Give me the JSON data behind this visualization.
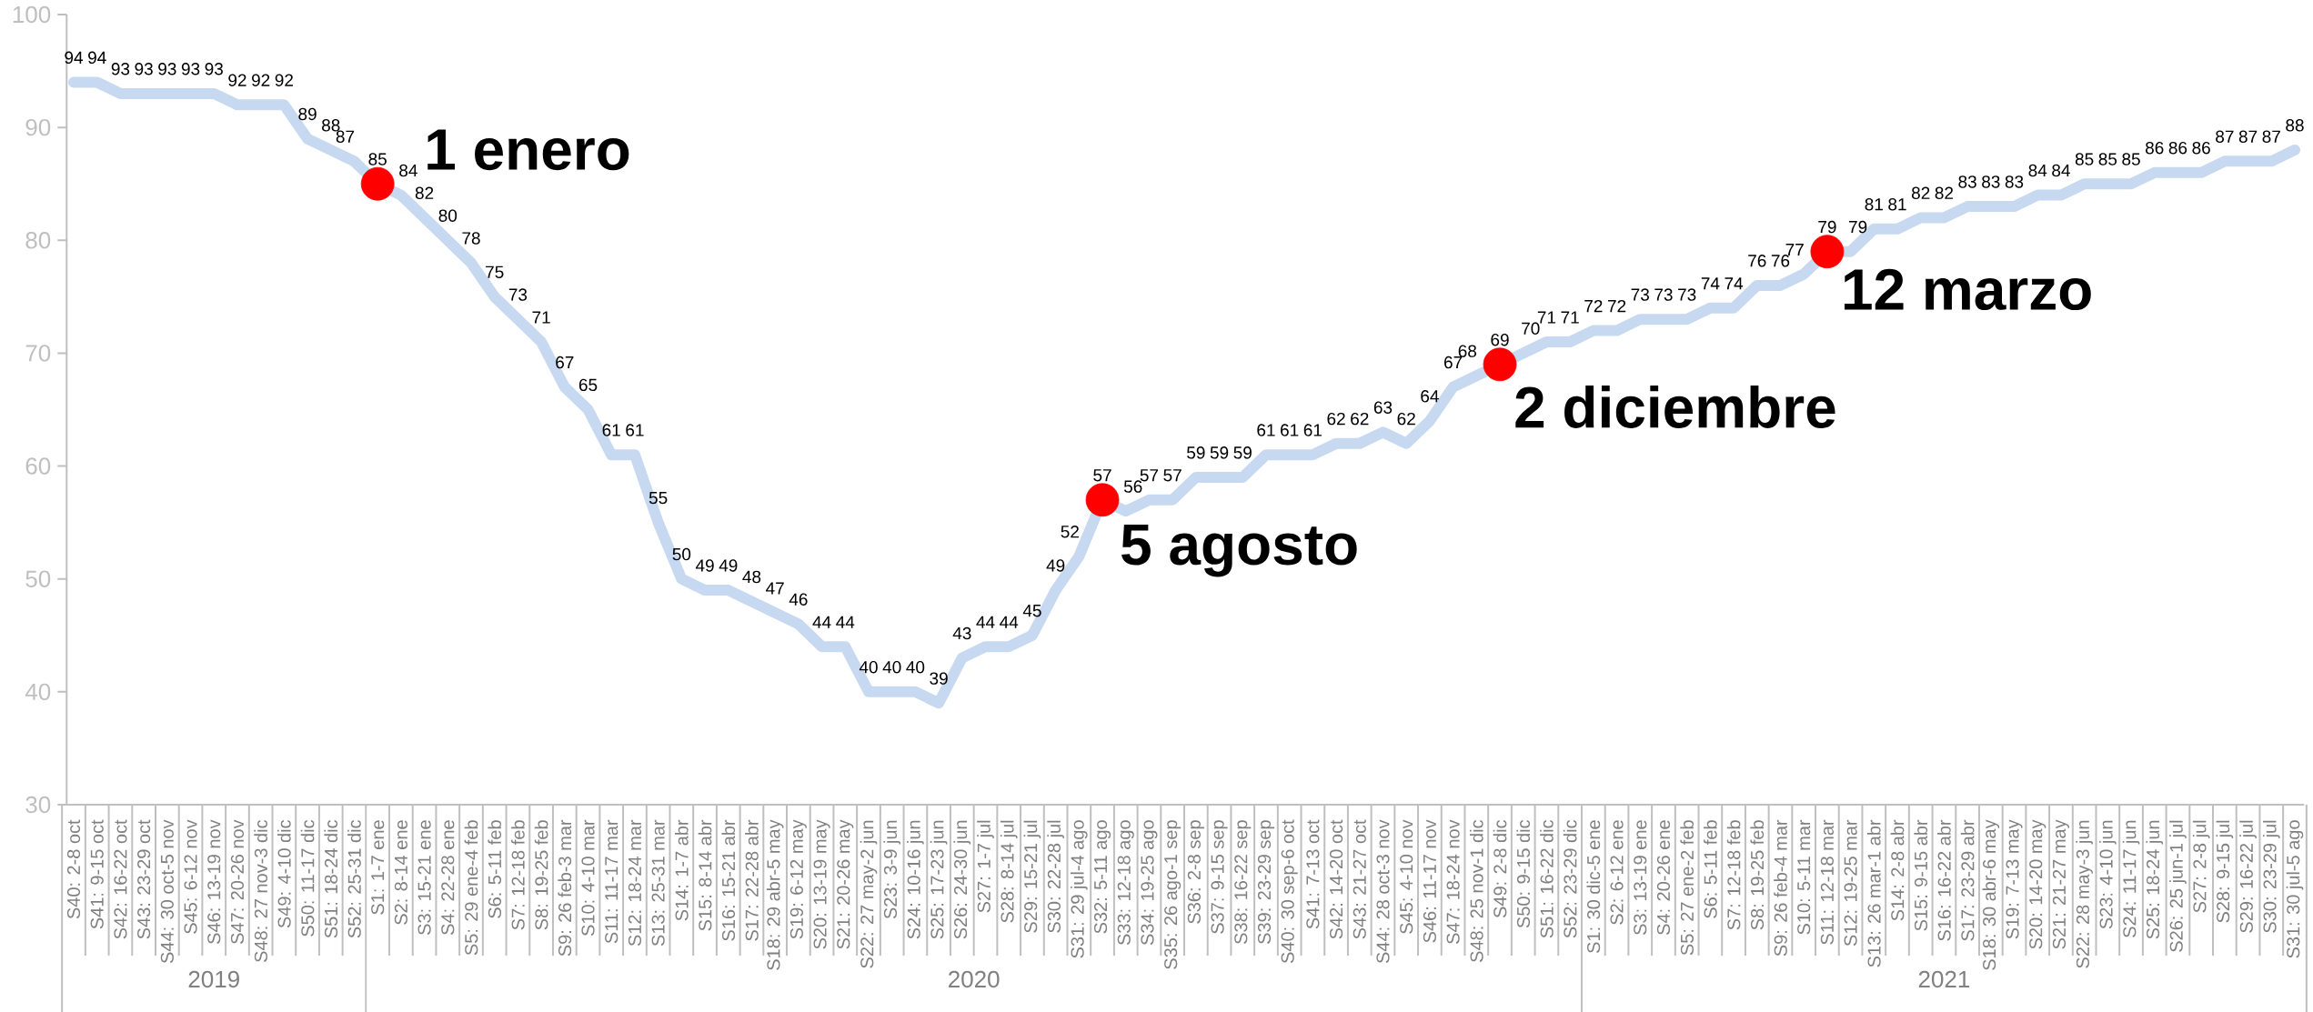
{
  "chart_data": {
    "type": "line",
    "categories": [
      "S40: 2-8 oct",
      "S41: 9-15 oct",
      "S42: 16-22 oct",
      "S43: 23-29 oct",
      "S44: 30 oct-5 nov",
      "S45: 6-12 nov",
      "S46: 13-19 nov",
      "S47: 20-26 nov",
      "S48: 27 nov-3 dic",
      "S49: 4-10 dic",
      "S50: 11-17 dic",
      "S51: 18-24 dic",
      "S52: 25-31 dic",
      "S1: 1-7 ene",
      "S2: 8-14 ene",
      "S3: 15-21 ene",
      "S4: 22-28 ene",
      "S5: 29 ene-4 feb",
      "S6: 5-11 feb",
      "S7: 12-18 feb",
      "S8: 19-25 feb",
      "S9: 26 feb-3 mar",
      "S10: 4-10 mar",
      "S11: 11-17 mar",
      "S12: 18-24 mar",
      "S13: 25-31 mar",
      "S14: 1-7 abr",
      "S15: 8-14 abr",
      "S16: 15-21 abr",
      "S17: 22-28 abr",
      "S18: 29 abr-5 may",
      "S19: 6-12 may",
      "S20: 13-19 may",
      "S21: 20-26 may",
      "S22: 27 may-2 jun",
      "S23: 3-9 jun",
      "S24: 10-16 jun",
      "S25: 17-23 jun",
      "S26: 24-30 jun",
      "S27: 1-7 jul",
      "S28: 8-14 jul",
      "S29: 15-21 jul",
      "S30: 22-28 jul",
      "S31: 29 jul-4 ago",
      "S32: 5-11 ago",
      "S33: 12-18 ago",
      "S34: 19-25 ago",
      "S35: 26 ago-1 sep",
      "S36: 2-8 sep",
      "S37: 9-15 sep",
      "S38: 16-22 sep",
      "S39: 23-29 sep",
      "S40: 30 sep-6 oct",
      "S41: 7-13 oct",
      "S42: 14-20 oct",
      "S43: 21-27 oct",
      "S44: 28 oct-3 nov",
      "S45: 4-10 nov",
      "S46: 11-17 nov",
      "S47: 18-24 nov",
      "S48: 25 nov-1 dic",
      "S49: 2-8 dic",
      "S50: 9-15 dic",
      "S51: 16-22 dic",
      "S52: 23-29 dic",
      "S1: 30 dic-5 ene",
      "S2: 6-12 ene",
      "S3: 13-19 ene",
      "S4: 20-26 ene",
      "S5: 27 ene-2 feb",
      "S6: 5-11 feb",
      "S7: 12-18 feb",
      "S8: 19-25 feb",
      "S9: 26 feb-4 mar",
      "S10: 5-11 mar",
      "S11: 12-18 mar",
      "S12: 19-25 mar",
      "S13: 26 mar-1 abr",
      "S14: 2-8 abr",
      "S15: 9-15 abr",
      "S16: 16-22 abr",
      "S17: 23-29 abr",
      "S18: 30 abr-6 may",
      "S19: 7-13 may",
      "S20: 14-20 may",
      "S21: 21-27 may",
      "S22: 28 may-3 jun",
      "S23: 4-10 jun",
      "S24: 11-17 jun",
      "S25: 18-24 jun",
      "S26: 25 jun-1 jul",
      "S27: 2-8 jul",
      "S28: 9-15 jul",
      "S29: 16-22 jul",
      "S30: 23-29 jul",
      "S31: 30 jul-5 ago"
    ],
    "series": [
      {
        "color": "#c6d9f0",
        "data_labels": true,
        "values": [
          94,
          94,
          93,
          93,
          93,
          93,
          93,
          92,
          92,
          92,
          89,
          88,
          87,
          85,
          84,
          82,
          80,
          78,
          75,
          73,
          71,
          67,
          65,
          61,
          61,
          55,
          50,
          49,
          49,
          48,
          47,
          46,
          44,
          44,
          40,
          40,
          40,
          39,
          43,
          44,
          44,
          45,
          49,
          52,
          57,
          56,
          57,
          57,
          59,
          59,
          59,
          61,
          61,
          61,
          62,
          62,
          63,
          62,
          64,
          67,
          68,
          69,
          70,
          71,
          71,
          72,
          72,
          73,
          73,
          73,
          74,
          74,
          76,
          76,
          77,
          79,
          79,
          81,
          81,
          82,
          82,
          83,
          83,
          83,
          84,
          84,
          85,
          85,
          85,
          86,
          86,
          86,
          87,
          87,
          87,
          88
        ]
      },
      {
        "type": "scatter",
        "color": "#ff0000",
        "marker": "circle",
        "x": [
          "S1: 1-7 ene",
          "S32: 5-11 ago",
          "S49: 2-8 dic",
          "S11: 12-18 mar"
        ],
        "values": [
          85,
          57,
          69,
          79
        ]
      }
    ],
    "ylim": [
      30,
      100
    ],
    "yticks": [
      30,
      40,
      50,
      60,
      70,
      80,
      90,
      100
    ],
    "annotations": [
      {
        "text": "1 enero",
        "x": "S1: 1-7 ene",
        "y": 85
      },
      {
        "text": "5 agosto",
        "x": "S32: 5-11 ago",
        "y": 57
      },
      {
        "text": "2 diciembre",
        "x": "S49: 2-8 dic",
        "y": 69
      },
      {
        "text": "12 marzo",
        "x": "S11: 12-18 mar",
        "y": 79
      },
      "2019",
      "2020",
      "2021"
    ]
  }
}
